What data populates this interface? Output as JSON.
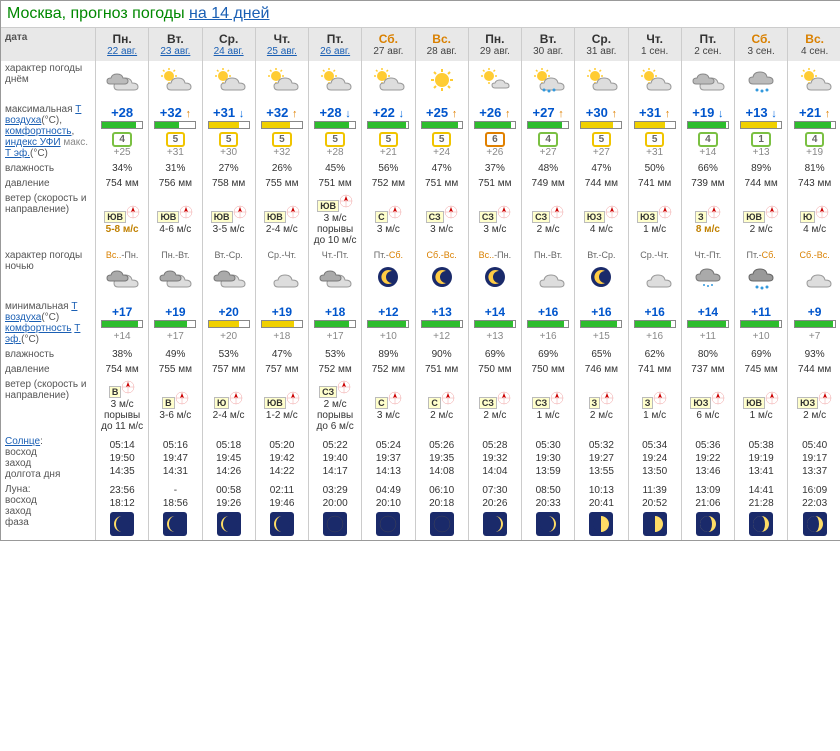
{
  "title_prefix": "Москва, прогноз погоды ",
  "title_link": "на 14 дней",
  "row_labels": {
    "date": "дата",
    "day_char": "характер погоды днём",
    "tmax": "максимальная Т воздуха(°С), комфортность, индекс УФИ макс. Т эф.(°С)",
    "hum_d": "влажность",
    "pres_d": "давление",
    "wind_d": "ветер (скорость и направление)",
    "night_char": "характер погоды ночью",
    "tmin": "минимальная Т воздуха(°С) комфортность Т эф.(°С)",
    "hum_n": "влажность",
    "pres_n": "давление",
    "wind_n": "ветер (скорость и направление)",
    "sun": "Солнце: восход заход долгота дня",
    "moon": "Луна: восход заход фаза"
  },
  "colors": {
    "bar_green": "#2dbd2d",
    "bar_yellow": "#f0d000",
    "uvi_green": "#7bc043",
    "uvi_yellow": "#f0c400",
    "uvi_orange": "#e08000"
  },
  "days": [
    {
      "dow": "Пн.",
      "date": "22 авг.",
      "date_link": true,
      "weekend": false,
      "day_icon": "cloudy",
      "tmax": "+28",
      "tmax_arr": "",
      "bar_d": {
        "c": "g",
        "p": 85
      },
      "uvi": 4,
      "uvi_c": "g",
      "teff_d": "+25",
      "hum_d": "34%",
      "pres_d": "754 мм",
      "wdir_d": "ЮВ",
      "wspd_d": "5-8 м/с",
      "wspd_d_strong": true,
      "night_lbl": "Вс.-Пн.",
      "night_we": "Вс.",
      "night_icon": "cloudy-n",
      "tmin": "+17",
      "bar_n": {
        "c": "g",
        "p": 90
      },
      "teff_n": "+14",
      "hum_n": "38%",
      "pres_n": "754 мм",
      "wdir_n": "В",
      "wspd_n": "3 м/с порывы до 11 м/с",
      "sun": "05:14\n19:50\n14:35",
      "moon": "23:56\n18:12",
      "moon_phase": "waning-crescent"
    },
    {
      "dow": "Вт.",
      "date": "23 авг.",
      "date_link": true,
      "weekend": false,
      "day_icon": "sun-cloud",
      "tmax": "+32",
      "tmax_arr": "up",
      "bar_d": {
        "c": "g",
        "p": 60
      },
      "uvi": 5,
      "uvi_c": "y",
      "teff_d": "+31",
      "hum_d": "31%",
      "pres_d": "756 мм",
      "wdir_d": "ЮВ",
      "wspd_d": "4-6 м/с",
      "night_lbl": "Пн.-Вт.",
      "night_icon": "cloudy-n",
      "tmin": "+19",
      "bar_n": {
        "c": "g",
        "p": 80
      },
      "teff_n": "+17",
      "hum_n": "49%",
      "pres_n": "755 мм",
      "wdir_n": "В",
      "wspd_n": "3-6 м/с",
      "sun": "05:16\n19:47\n14:31",
      "moon": "-\n18:56",
      "moon_phase": "waning-crescent"
    },
    {
      "dow": "Ср.",
      "date": "24 авг.",
      "date_link": true,
      "weekend": false,
      "day_icon": "sun-cloud",
      "tmax": "+31",
      "tmax_arr": "dn",
      "bar_d": {
        "c": "y",
        "p": 75
      },
      "uvi": 5,
      "uvi_c": "y",
      "teff_d": "+30",
      "hum_d": "27%",
      "pres_d": "758 мм",
      "wdir_d": "ЮВ",
      "wspd_d": "3-5 м/с",
      "night_lbl": "Вт.-Ср.",
      "night_icon": "cloudy-n",
      "tmin": "+20",
      "bar_n": {
        "c": "y",
        "p": 75
      },
      "teff_n": "+20",
      "hum_n": "53%",
      "pres_n": "757 мм",
      "wdir_n": "Ю",
      "wspd_n": "2-4 м/с",
      "sun": "05:18\n19:45\n14:26",
      "moon": "00:58\n19:26",
      "moon_phase": "waning-crescent"
    },
    {
      "dow": "Чт.",
      "date": "25 авг.",
      "date_link": true,
      "weekend": false,
      "day_icon": "sun-cloud",
      "tmax": "+32",
      "tmax_arr": "up",
      "bar_d": {
        "c": "y",
        "p": 70
      },
      "uvi": 5,
      "uvi_c": "y",
      "teff_d": "+32",
      "hum_d": "26%",
      "pres_d": "755 мм",
      "wdir_d": "ЮВ",
      "wspd_d": "2-4 м/с",
      "night_lbl": "Ср.-Чт.",
      "night_icon": "moon-cloud",
      "tmin": "+19",
      "bar_n": {
        "c": "y",
        "p": 80
      },
      "teff_n": "+18",
      "hum_n": "47%",
      "pres_n": "757 мм",
      "wdir_n": "ЮВ",
      "wspd_n": "1-2 м/с",
      "sun": "05:20\n19:42\n14:22",
      "moon": "02:11\n19:46",
      "moon_phase": "waning-crescent"
    },
    {
      "dow": "Пт.",
      "date": "26 авг.",
      "date_link": true,
      "weekend": false,
      "day_icon": "sun-cloud",
      "tmax": "+28",
      "tmax_arr": "dn",
      "bar_d": {
        "c": "g",
        "p": 85
      },
      "uvi": 5,
      "uvi_c": "y",
      "teff_d": "+28",
      "hum_d": "45%",
      "pres_d": "751 мм",
      "wdir_d": "ЮВ",
      "wspd_d": "3 м/с порывы до 10 м/с",
      "night_lbl": "Чт.-Пт.",
      "night_icon": "cloudy-n",
      "tmin": "+18",
      "bar_n": {
        "c": "g",
        "p": 85
      },
      "teff_n": "+17",
      "hum_n": "53%",
      "pres_n": "752 мм",
      "wdir_n": "СЗ",
      "wspd_n": "2 м/с порывы до 6 м/с",
      "sun": "05:22\n19:40\n14:17",
      "moon": "03:29\n20:00",
      "moon_phase": "new"
    },
    {
      "dow": "Сб.",
      "date": "27 авг.",
      "date_link": false,
      "weekend": true,
      "day_icon": "sun-cloud",
      "tmax": "+22",
      "tmax_arr": "dn",
      "bar_d": {
        "c": "g",
        "p": 95
      },
      "uvi": 5,
      "uvi_c": "y",
      "teff_d": "+21",
      "hum_d": "56%",
      "pres_d": "752 мм",
      "wdir_d": "С",
      "wspd_d": "3 м/с",
      "night_lbl": "Пт.-Сб.",
      "night_we": "Сб.",
      "night_icon": "moon",
      "tmin": "+12",
      "bar_n": {
        "c": "g",
        "p": 95
      },
      "teff_n": "+10",
      "hum_n": "89%",
      "pres_n": "752 мм",
      "wdir_n": "С",
      "wspd_n": "3 м/с",
      "sun": "05:24\n19:37\n14:13",
      "moon": "04:49\n20:10",
      "moon_phase": "new"
    },
    {
      "dow": "Вс.",
      "date": "28 авг.",
      "date_link": false,
      "weekend": true,
      "day_icon": "sun",
      "tmax": "+25",
      "tmax_arr": "up",
      "bar_d": {
        "c": "g",
        "p": 90
      },
      "uvi": 5,
      "uvi_c": "y",
      "teff_d": "+24",
      "hum_d": "47%",
      "pres_d": "751 мм",
      "wdir_d": "СЗ",
      "wspd_d": "3 м/с",
      "night_lbl": "Сб.-Вс.",
      "night_we": "both",
      "night_icon": "moon",
      "tmin": "+13",
      "bar_n": {
        "c": "g",
        "p": 95
      },
      "teff_n": "+12",
      "hum_n": "90%",
      "pres_n": "751 мм",
      "wdir_n": "С",
      "wspd_n": "2 м/с",
      "sun": "05:26\n19:35\n14:08",
      "moon": "06:10\n20:18",
      "moon_phase": "new"
    },
    {
      "dow": "Пн.",
      "date": "29 авг.",
      "date_link": false,
      "weekend": false,
      "day_icon": "sun-small-cloud",
      "tmax": "+26",
      "tmax_arr": "up",
      "bar_d": {
        "c": "g",
        "p": 90
      },
      "uvi": 6,
      "uvi_c": "o",
      "teff_d": "+26",
      "hum_d": "37%",
      "pres_d": "751 мм",
      "wdir_d": "СЗ",
      "wspd_d": "3 м/с",
      "night_lbl": "Вс.-Пн.",
      "night_we": "Вс.",
      "night_icon": "moon",
      "tmin": "+14",
      "bar_n": {
        "c": "g",
        "p": 95
      },
      "teff_n": "+13",
      "hum_n": "69%",
      "pres_n": "750 мм",
      "wdir_n": "СЗ",
      "wspd_n": "2 м/с",
      "sun": "05:28\n19:32\n14:04",
      "moon": "07:30\n20:26",
      "moon_phase": "waxing-crescent"
    },
    {
      "dow": "Вт.",
      "date": "30 авг.",
      "date_link": false,
      "weekend": false,
      "day_icon": "sun-rain",
      "tmax": "+27",
      "tmax_arr": "up",
      "bar_d": {
        "c": "g",
        "p": 85
      },
      "uvi": 4,
      "uvi_c": "g",
      "teff_d": "+27",
      "hum_d": "48%",
      "pres_d": "749 мм",
      "wdir_d": "СЗ",
      "wspd_d": "2 м/с",
      "night_lbl": "Пн.-Вт.",
      "night_icon": "moon-cloud",
      "tmin": "+16",
      "bar_n": {
        "c": "g",
        "p": 90
      },
      "teff_n": "+16",
      "hum_n": "69%",
      "pres_n": "750 мм",
      "wdir_n": "СЗ",
      "wspd_n": "1 м/с",
      "sun": "05:30\n19:30\n13:59",
      "moon": "08:50\n20:33",
      "moon_phase": "waxing-crescent"
    },
    {
      "dow": "Ср.",
      "date": "31 авг.",
      "date_link": false,
      "weekend": false,
      "day_icon": "sun-cloud",
      "tmax": "+30",
      "tmax_arr": "up",
      "bar_d": {
        "c": "y",
        "p": 80
      },
      "uvi": 5,
      "uvi_c": "y",
      "teff_d": "+27",
      "hum_d": "47%",
      "pres_d": "744 мм",
      "wdir_d": "ЮЗ",
      "wspd_d": "4 м/с",
      "night_lbl": "Вт.-Ср.",
      "night_icon": "moon",
      "tmin": "+16",
      "bar_n": {
        "c": "g",
        "p": 90
      },
      "teff_n": "+15",
      "hum_n": "65%",
      "pres_n": "746 мм",
      "wdir_n": "З",
      "wspd_n": "2 м/с",
      "sun": "05:32\n19:27\n13:55",
      "moon": "10:13\n20:41",
      "moon_phase": "first-quarter"
    },
    {
      "dow": "Чт.",
      "date": "1 сен.",
      "date_link": false,
      "weekend": false,
      "day_icon": "sun-cloud",
      "tmax": "+31",
      "tmax_arr": "up",
      "bar_d": {
        "c": "y",
        "p": 75
      },
      "uvi": 5,
      "uvi_c": "y",
      "teff_d": "+31",
      "hum_d": "50%",
      "pres_d": "741 мм",
      "wdir_d": "ЮЗ",
      "wspd_d": "1 м/с",
      "night_lbl": "Ср.-Чт.",
      "night_icon": "moon-cloud",
      "tmin": "+16",
      "bar_n": {
        "c": "g",
        "p": 90
      },
      "teff_n": "+16",
      "hum_n": "62%",
      "pres_n": "741 мм",
      "wdir_n": "З",
      "wspd_n": "1 м/с",
      "sun": "05:34\n19:24\n13:50",
      "moon": "11:39\n20:52",
      "moon_phase": "first-quarter"
    },
    {
      "dow": "Пт.",
      "date": "2 сен.",
      "date_link": false,
      "weekend": false,
      "day_icon": "cloudy",
      "tmax": "+19",
      "tmax_arr": "dn",
      "bar_d": {
        "c": "g",
        "p": 95
      },
      "uvi": 4,
      "uvi_c": "g",
      "teff_d": "+14",
      "hum_d": "66%",
      "pres_d": "739 мм",
      "wdir_d": "З",
      "wspd_d": "8 м/с",
      "wspd_d_strong": true,
      "night_lbl": "Чт.-Пт.",
      "night_icon": "cloud-drizzle",
      "tmin": "+14",
      "bar_n": {
        "c": "g",
        "p": 95
      },
      "teff_n": "+11",
      "hum_n": "80%",
      "pres_n": "737 мм",
      "wdir_n": "ЮЗ",
      "wspd_n": "6 м/с",
      "sun": "05:36\n19:22\n13:46",
      "moon": "13:09\n21:06",
      "moon_phase": "waxing-gibbous"
    },
    {
      "dow": "Сб.",
      "date": "3 сен.",
      "date_link": false,
      "weekend": true,
      "day_icon": "rain",
      "tmax": "+13",
      "tmax_arr": "dn",
      "bar_d": {
        "c": "y",
        "p": 90
      },
      "uvi": 1,
      "uvi_c": "g",
      "teff_d": "+13",
      "hum_d": "89%",
      "pres_d": "744 мм",
      "wdir_d": "ЮВ",
      "wspd_d": "2 м/с",
      "night_lbl": "Пт.-Сб.",
      "night_we": "Сб.",
      "night_icon": "cloud-rain",
      "tmin": "+11",
      "bar_n": {
        "c": "g",
        "p": 95
      },
      "teff_n": "+10",
      "hum_n": "69%",
      "pres_n": "745 мм",
      "wdir_n": "ЮВ",
      "wspd_n": "1 м/с",
      "sun": "05:38\n19:19\n13:41",
      "moon": "14:41\n21:28",
      "moon_phase": "waxing-gibbous"
    },
    {
      "dow": "Вс.",
      "date": "4 сен.",
      "date_link": false,
      "weekend": true,
      "day_icon": "sun-cloud",
      "tmax": "+21",
      "tmax_arr": "up",
      "bar_d": {
        "c": "g",
        "p": 90
      },
      "uvi": 4,
      "uvi_c": "g",
      "teff_d": "+19",
      "hum_d": "81%",
      "pres_d": "743 мм",
      "wdir_d": "Ю",
      "wspd_d": "4 м/с",
      "night_lbl": "Сб.-Вс.",
      "night_we": "both",
      "night_icon": "moon-cloud",
      "tmin": "+9",
      "bar_n": {
        "c": "g",
        "p": 95
      },
      "teff_n": "+7",
      "hum_n": "93%",
      "pres_n": "744 мм",
      "wdir_n": "ЮЗ",
      "wspd_n": "2 м/с",
      "sun": "05:40\n19:17\n13:37",
      "moon": "16:09\n22:03",
      "moon_phase": "waxing-gibbous"
    }
  ]
}
